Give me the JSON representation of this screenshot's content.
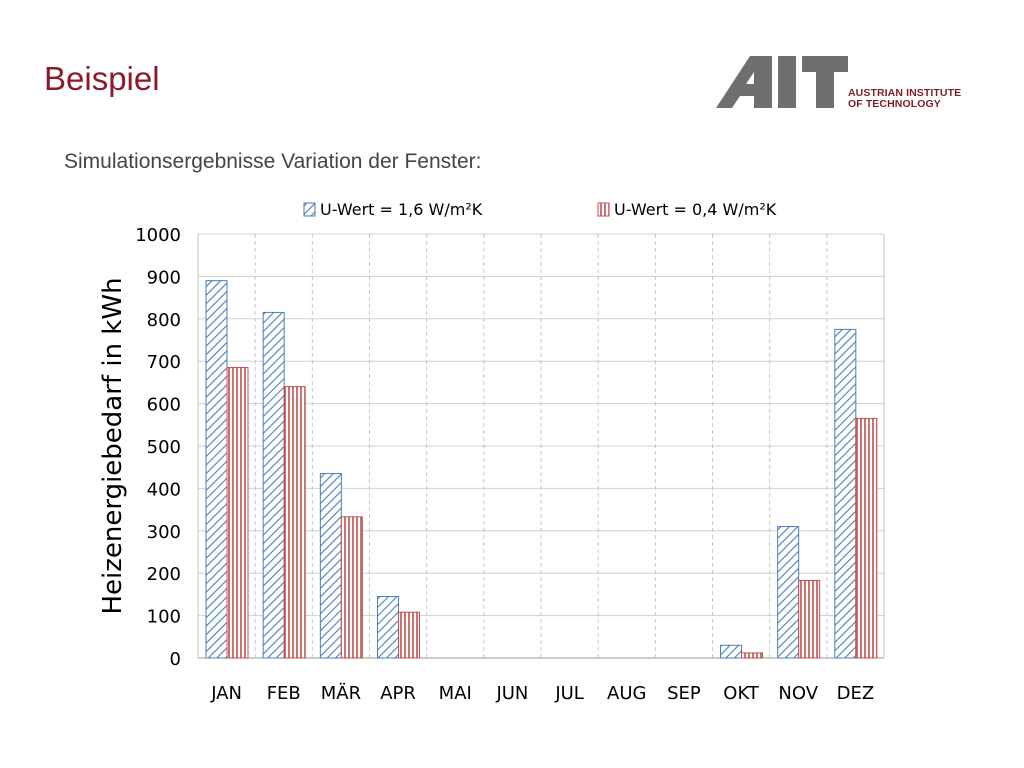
{
  "header": {
    "title": "Beispiel",
    "subtitle": "Simulationsergebnisse Variation der Fenster:",
    "logo_mark": "AIT",
    "logo_text_line1": "AUSTRIAN INSTITUTE",
    "logo_text_line2": "OF TECHNOLOGY",
    "title_color": "#8b1a2b",
    "logo_color": "#6f6f6f",
    "logo_accent": "#7f1d2b"
  },
  "chart_data": {
    "type": "bar",
    "categories": [
      "JAN",
      "FEB",
      "MÄR",
      "APR",
      "MAI",
      "JUN",
      "JUL",
      "AUG",
      "SEP",
      "OKT",
      "NOV",
      "DEZ"
    ],
    "series": [
      {
        "name": "U-Wert = 1,6 W/m²K",
        "values": [
          890,
          815,
          435,
          145,
          0,
          0,
          0,
          0,
          0,
          30,
          310,
          775
        ],
        "color": "#4a7ebb",
        "pattern": "diagonal-hatch"
      },
      {
        "name": "U-Wert = 0,4 W/m²K",
        "values": [
          685,
          640,
          333,
          108,
          0,
          0,
          0,
          0,
          0,
          12,
          183,
          565
        ],
        "color": "#c0504d",
        "pattern": "vertical-lines"
      }
    ],
    "title": "",
    "xlabel": "",
    "ylabel": "Heizenergiebedarf in kWh",
    "ylim": [
      0,
      1000
    ],
    "yticks": [
      0,
      100,
      200,
      300,
      400,
      500,
      600,
      700,
      800,
      900,
      1000
    ],
    "grid": true,
    "legend_position": "top"
  }
}
